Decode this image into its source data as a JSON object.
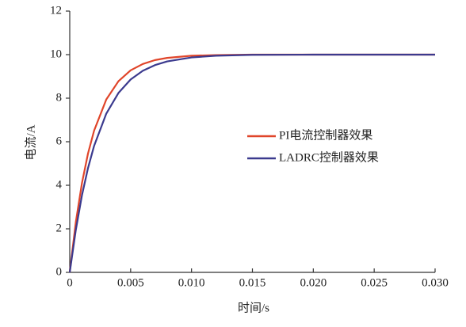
{
  "chart_data": {
    "type": "line",
    "x_label": "时间/s",
    "y_label": "电流/A",
    "x": [
      0,
      0.0005,
      0.001,
      0.0015,
      0.002,
      0.003,
      0.004,
      0.005,
      0.006,
      0.007,
      0.008,
      0.01,
      0.012,
      0.015,
      0.02,
      0.025,
      0.03
    ],
    "series": [
      {
        "name": "PI电流控制器效果",
        "color": "#e0452a",
        "values": [
          0,
          2.31,
          4.09,
          5.46,
          6.51,
          7.94,
          8.78,
          9.28,
          9.57,
          9.75,
          9.85,
          9.95,
          9.98,
          10,
          10,
          10,
          10
        ]
      },
      {
        "name": "LADRC控制器效果",
        "color": "#3b3a8e",
        "values": [
          0,
          1.95,
          3.53,
          4.79,
          5.81,
          7.29,
          8.24,
          8.86,
          9.26,
          9.52,
          9.69,
          9.87,
          9.95,
          9.99,
          10,
          10,
          10
        ]
      }
    ],
    "xlim": [
      0,
      0.03
    ],
    "xticks": [
      0,
      0.005,
      {
        "value": 0.01,
        "label": "0.010"
      },
      0.015,
      {
        "value": 0.02,
        "label": "0.020"
      },
      0.025,
      {
        "value": 0.03,
        "label": "0.030"
      }
    ],
    "ylim": [
      0,
      12
    ],
    "yticks": [
      0,
      2,
      4,
      6,
      8,
      10,
      12
    ],
    "grid": false,
    "legend": "right"
  }
}
